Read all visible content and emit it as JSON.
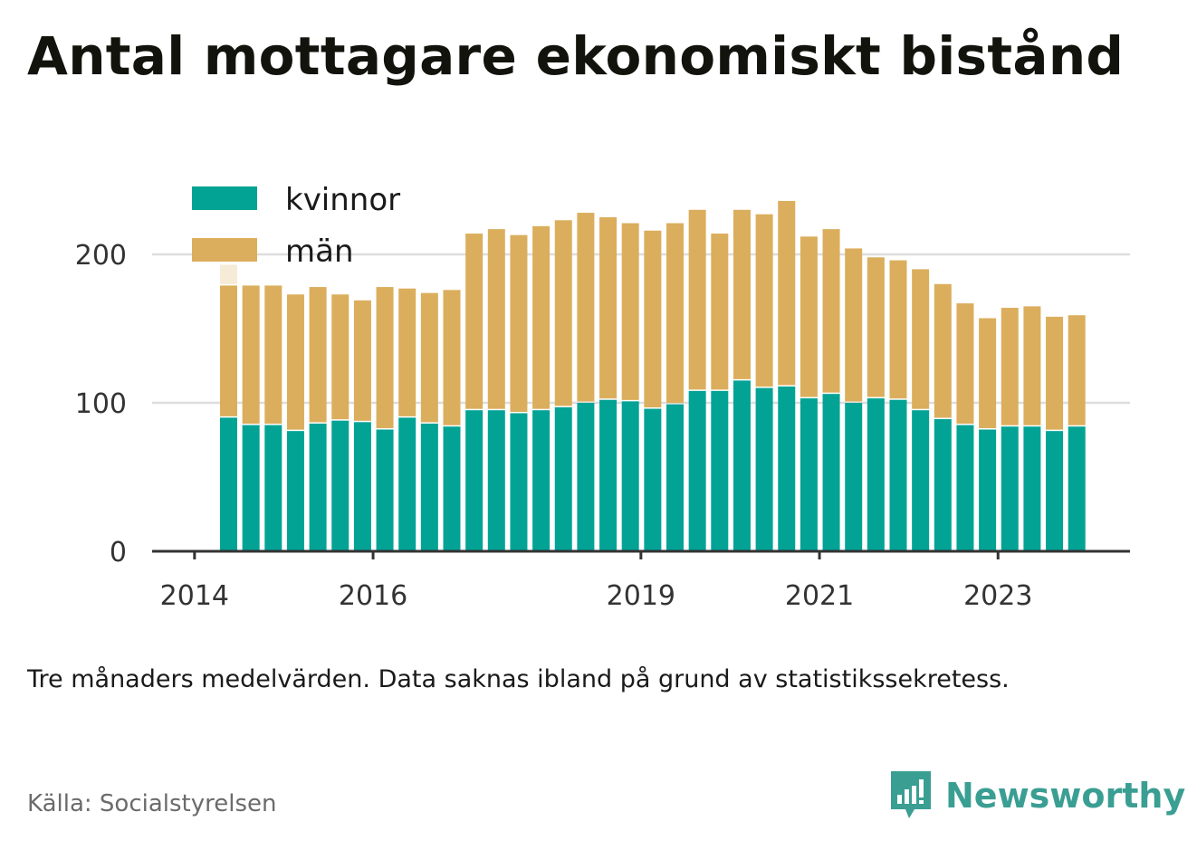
{
  "title": "Antal mottagare ekonomiskt bistånd",
  "note": "Tre månaders medelvärden. Data saknas ibland på grund av statistikssekretess.",
  "source": "Källa: Socialstyrelsen",
  "brand": {
    "name": "Newsworthy",
    "icon": "newsworthy-bar-chart-icon",
    "color": "#3a9e93"
  },
  "colors": {
    "kvinnor": "#02a395",
    "man": "#dbae5d",
    "missing": "#f6ebd6",
    "axis": "#333333",
    "grid": "#dddddd"
  },
  "chart_data": {
    "type": "bar",
    "stacked": true,
    "legend": [
      "kvinnor",
      "män"
    ],
    "legend_position": "top-left",
    "grid": true,
    "ylim": [
      0,
      240
    ],
    "yticks": [
      0,
      100,
      200
    ],
    "xticks": [
      "2014",
      "2016",
      "2019",
      "2021",
      "2023"
    ],
    "categories": [
      "2014 Q2",
      "2014 Q3",
      "2014 Q4",
      "2015 Q1",
      "2015 Q2",
      "2015 Q3",
      "2015 Q4",
      "2016 Q1",
      "2016 Q2",
      "2016 Q3",
      "2016 Q4",
      "2017 Q1",
      "2017 Q2",
      "2017 Q3",
      "2017 Q4",
      "2018 Q1",
      "2018 Q2",
      "2018 Q3",
      "2018 Q4",
      "2019 Q1",
      "2019 Q2",
      "2019 Q3",
      "2019 Q4",
      "2020 Q1",
      "2020 Q2",
      "2020 Q3",
      "2020 Q4",
      "2021 Q1",
      "2021 Q2",
      "2021 Q3",
      "2021 Q4",
      "2022 Q1",
      "2022 Q2",
      "2022 Q3",
      "2022 Q4",
      "2023 Q1",
      "2023 Q2",
      "2023 Q3",
      "2023 Q4"
    ],
    "series": [
      {
        "name": "kvinnor",
        "values": [
          90,
          85,
          85,
          81,
          86,
          88,
          87,
          82,
          90,
          86,
          84,
          95,
          95,
          93,
          95,
          97,
          100,
          102,
          101,
          96,
          99,
          108,
          108,
          115,
          110,
          111,
          103,
          106,
          100,
          103,
          102,
          95,
          89,
          85,
          82,
          84,
          84,
          81,
          84
        ]
      },
      {
        "name": "män",
        "values": [
          89,
          94,
          94,
          92,
          92,
          85,
          82,
          96,
          87,
          88,
          92,
          119,
          122,
          120,
          124,
          126,
          128,
          123,
          120,
          120,
          122,
          122,
          106,
          115,
          117,
          125,
          109,
          111,
          104,
          95,
          94,
          95,
          91,
          82,
          75,
          80,
          81,
          77,
          75
        ]
      }
    ],
    "missing_marker": {
      "category": "2014 Q2",
      "from": 180,
      "to": 193
    }
  }
}
